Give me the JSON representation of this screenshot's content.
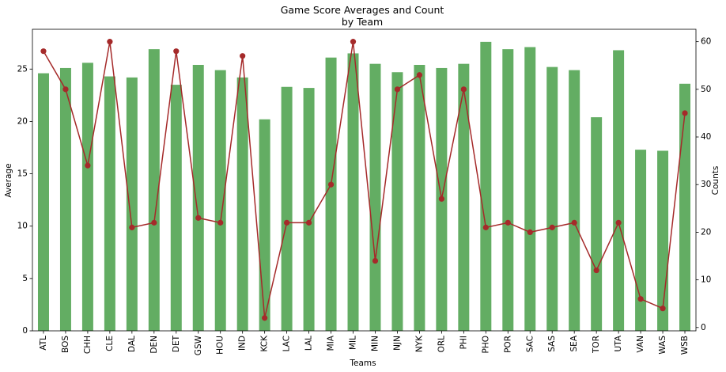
{
  "chart_data": {
    "type": "bar+line",
    "title": "Game Score Averages and Count",
    "subtitle": "by Team",
    "xlabel": "Teams",
    "ylabel_left": "Average",
    "ylabel_right": "Counts",
    "ylim_left": [
      0,
      28.8
    ],
    "ylim_right": [
      -0.7,
      62.6
    ],
    "yticks_left": [
      0,
      5,
      10,
      15,
      20,
      25
    ],
    "yticks_right": [
      0,
      10,
      20,
      30,
      40,
      50,
      60
    ],
    "categories": [
      "ATL",
      "BOS",
      "CHH",
      "CLE",
      "DAL",
      "DEN",
      "DET",
      "GSW",
      "HOU",
      "IND",
      "KCK",
      "LAC",
      "LAL",
      "MIA",
      "MIL",
      "MIN",
      "NJN",
      "NYK",
      "ORL",
      "PHI",
      "PHO",
      "POR",
      "SAC",
      "SAS",
      "SEA",
      "TOR",
      "UTA",
      "VAN",
      "WAS",
      "WSB"
    ],
    "series": [
      {
        "kind": "bar",
        "axis": "left",
        "color": "#63ad63",
        "values": [
          24.6,
          25.1,
          25.6,
          24.3,
          24.2,
          26.9,
          23.5,
          25.4,
          24.9,
          24.2,
          20.2,
          23.3,
          23.2,
          26.1,
          26.5,
          25.5,
          24.7,
          25.4,
          25.1,
          25.5,
          27.6,
          26.9,
          27.1,
          25.2,
          24.9,
          20.4,
          26.8,
          17.3,
          17.2,
          23.6
        ]
      },
      {
        "kind": "line",
        "axis": "right",
        "color": "#a52a2a",
        "values": [
          58,
          50,
          34,
          60,
          21,
          22,
          58,
          23,
          22,
          57,
          2,
          22,
          22,
          30,
          60,
          14,
          50,
          53,
          27,
          50,
          21,
          22,
          20,
          21,
          22,
          12,
          22,
          6,
          4,
          45
        ]
      }
    ],
    "grid": false
  }
}
